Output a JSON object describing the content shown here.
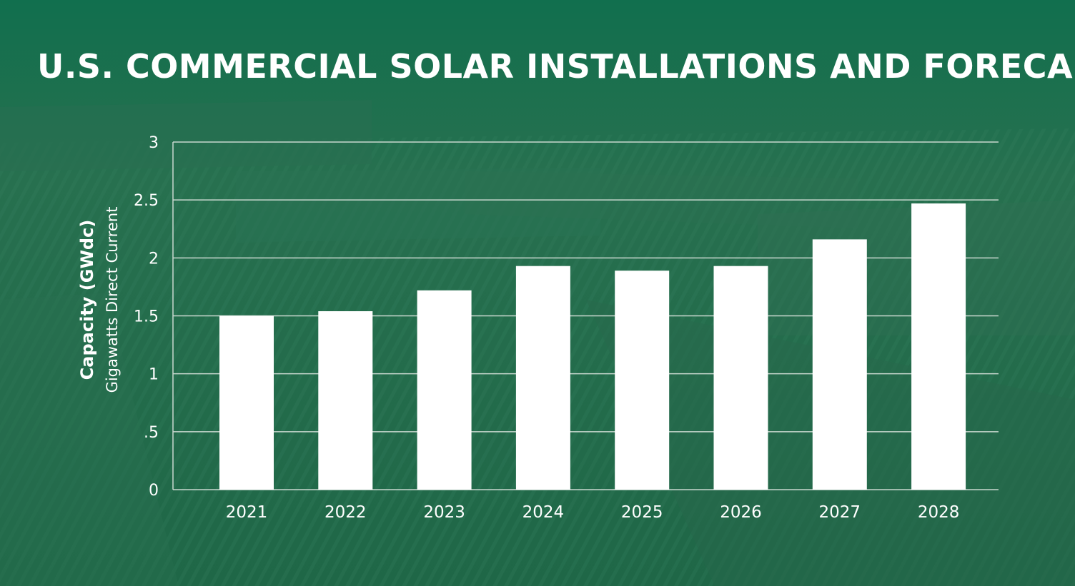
{
  "chart_data": {
    "type": "bar",
    "title": "U.S. COMMERCIAL SOLAR INSTALLATIONS AND FORECAST",
    "ylabel": "Capacity (GWdc)",
    "ylabel_sub": "Gigawatts Direct Current",
    "categories": [
      "2021",
      "2022",
      "2023",
      "2024",
      "2025",
      "2026",
      "2027",
      "2028"
    ],
    "values": [
      1.5,
      1.54,
      1.72,
      1.93,
      1.89,
      1.93,
      2.16,
      2.47
    ],
    "ylim": [
      0,
      3
    ],
    "yticks": [
      0,
      0.5,
      1,
      1.5,
      2,
      2.5,
      3
    ],
    "ytick_labels": [
      "0",
      ".5",
      "1",
      "1.5",
      "2",
      "2.5",
      "3"
    ],
    "grid": true,
    "bar_color": "#ffffff",
    "background_color": "#1e6b4c"
  }
}
